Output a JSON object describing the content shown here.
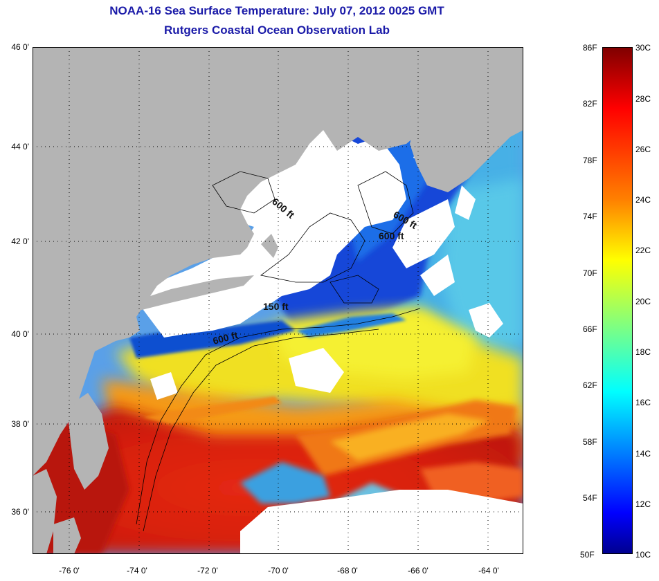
{
  "title": "NOAA-16 Sea Surface Temperature:  July 07, 2012 0025 GMT",
  "subtitle": "Rutgers Coastal Ocean Observation Lab",
  "map": {
    "lat_labels": [
      "46 0'",
      "44 0'",
      "42 0'",
      "40 0'",
      "38 0'",
      "36 0'"
    ],
    "lon_labels": [
      "-76 0'",
      "-74 0'",
      "-72 0'",
      "-70 0'",
      "-68 0'",
      "-66 0'",
      "-64 0'"
    ],
    "contour_labels": [
      "600 ft",
      "600 ft",
      "600 ft",
      "150 ft",
      "600 ft"
    ],
    "colors": {
      "land": "#b4b4b4",
      "cloud": "#ffffff",
      "frame": "#000000"
    }
  },
  "colorbar": {
    "fahrenheit": [
      "86F",
      "82F",
      "78F",
      "74F",
      "70F",
      "66F",
      "62F",
      "58F",
      "54F",
      "50F"
    ],
    "celsius": [
      "30C",
      "28C",
      "26C",
      "24C",
      "22C",
      "20C",
      "18C",
      "16C",
      "14C",
      "12C",
      "10C"
    ],
    "range_c": [
      10,
      30
    ],
    "range_f": [
      50,
      86
    ],
    "colormap": "jet"
  }
}
